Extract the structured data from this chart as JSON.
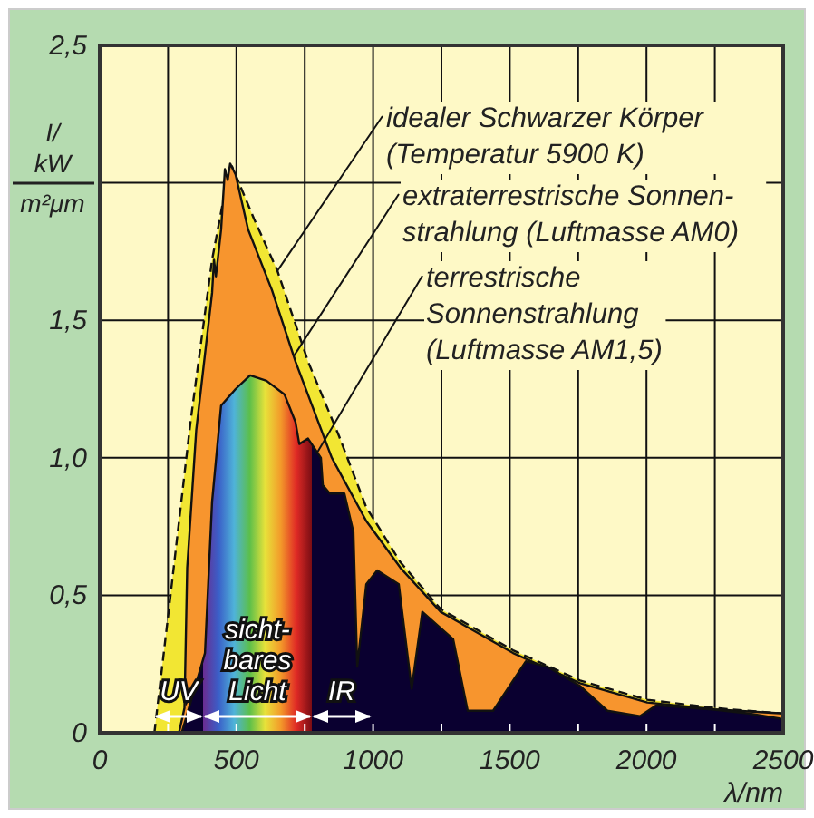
{
  "chart_data": {
    "type": "area",
    "xlabel": "λ/nm",
    "ylabel": "I/\nkW\nm²μm",
    "xlim": [
      0,
      2500
    ],
    "ylim": [
      0,
      2.5
    ],
    "xticks": [
      0,
      {
        "value": 250,
        "label": null
      },
      500,
      {
        "value": 750,
        "label": null
      },
      1000,
      {
        "value": 1250,
        "label": null
      },
      1500,
      {
        "value": 1750,
        "label": null
      },
      2000,
      {
        "value": 2250,
        "label": null
      },
      2500
    ],
    "yticks": [
      0,
      {
        "value": 0.5,
        "label": "0,5"
      },
      {
        "value": 1,
        "label": "1,0"
      },
      {
        "value": 1.5,
        "label": "1,5"
      },
      {
        "value": 2,
        "label": null
      },
      {
        "value": 2.5,
        "label": "2,5"
      }
    ],
    "grid": true,
    "series": [
      {
        "color": "#f2e633",
        "line_style": "dashed",
        "x": [
          200,
          252,
          332,
          411,
          464,
          484,
          564,
          650,
          762,
          875,
          975,
          1100,
          1247,
          1512,
          1757,
          2003,
          2250,
          2500
        ],
        "values": [
          0,
          0.44,
          1.13,
          1.72,
          2.0,
          2.06,
          1.87,
          1.68,
          1.35,
          1.08,
          0.82,
          0.62,
          0.45,
          0.3,
          0.19,
          0.12,
          0.09,
          0.07
        ]
      },
      {
        "color": "#f7952e",
        "line_style": "solid",
        "x": [
          290,
          310,
          320,
          353,
          411,
          418,
          425,
          444,
          458,
          468,
          477,
          497,
          543,
          630,
          716,
          849,
          975,
          1100,
          1247,
          1512,
          1757,
          2003,
          2250,
          2500
        ],
        "values": [
          0,
          0.09,
          0.6,
          1.1,
          1.6,
          1.72,
          1.66,
          1.83,
          2.05,
          2.01,
          2.07,
          2.03,
          1.83,
          1.61,
          1.35,
          1.0,
          0.77,
          0.6,
          0.44,
          0.29,
          0.18,
          0.11,
          0.085,
          0.07
        ]
      },
      {
        "color": "#0a0030",
        "line_style": "solid",
        "x": [
          300,
          385,
          411,
          444,
          497,
          550,
          610,
          676,
          716,
          730,
          762,
          809,
          816,
          842,
          895,
          928,
          942,
          975,
          1015,
          1094,
          1141,
          1180,
          1293,
          1346,
          1439,
          1559,
          1638,
          1757,
          1857,
          1976,
          2036,
          2241,
          2374,
          2500
        ],
        "values": [
          0,
          0.29,
          0.84,
          1.19,
          1.25,
          1.3,
          1.28,
          1.23,
          1.13,
          1.05,
          1.07,
          1.0,
          0.9,
          0.87,
          0.87,
          0.73,
          0.24,
          0.54,
          0.59,
          0.54,
          0.16,
          0.44,
          0.34,
          0.08,
          0.08,
          0.26,
          0.24,
          0.17,
          0.08,
          0.06,
          0.1,
          0.085,
          0.07,
          0.05
        ]
      }
    ],
    "annotations": [
      "UV",
      "sicht-\nbares\nLicht",
      "IR",
      {
        "text": "idealer Schwarzer Körper\n(Temperatur 5900 K)",
        "x": 650,
        "y": 1.68
      },
      {
        "text": "extraterrestrische Sonnen-\nstrahlung (Luftmasse AM0)",
        "x": 710,
        "y": 1.37
      },
      {
        "text": "terrestrische\nSonnenstrahlung\n(Luftmasse AM1,5)",
        "x": 796,
        "y": 1.02
      }
    ]
  }
}
